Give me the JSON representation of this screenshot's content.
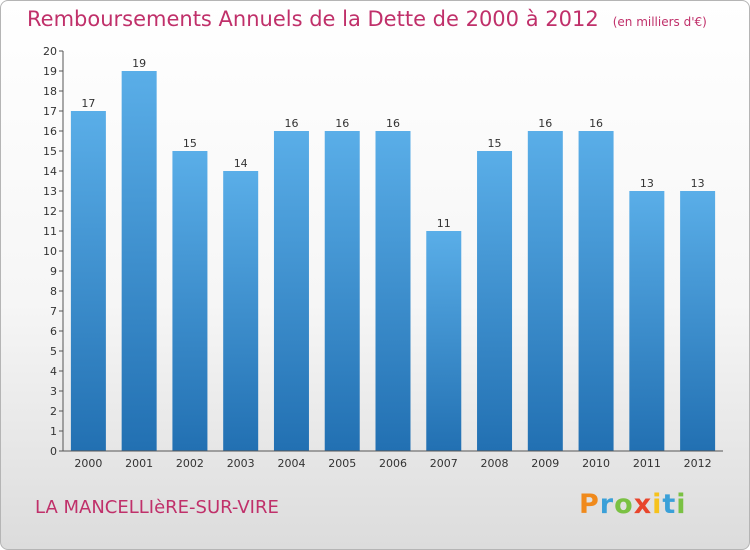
{
  "title": "Remboursements Annuels de la Dette de 2000 à 2012",
  "unit": "(en milliers d'€)",
  "place": "LA MANCELLIèRE-SUR-VIRE",
  "brand": {
    "letters": [
      "P",
      "r",
      "o",
      "x",
      "i",
      "t",
      "i"
    ],
    "colors": [
      "#f08a1c",
      "#3aa0d8",
      "#7ac143",
      "#e8452c",
      "#f6c21c",
      "#3aa0d8",
      "#7ac143"
    ]
  },
  "colors": {
    "bar_top": "#5aaee8",
    "bar_bottom": "#2270b2",
    "title": "#c0306a"
  },
  "chart_data": {
    "type": "bar",
    "categories": [
      "2000",
      "2001",
      "2002",
      "2003",
      "2004",
      "2005",
      "2006",
      "2007",
      "2008",
      "2009",
      "2010",
      "2011",
      "2012"
    ],
    "values": [
      17,
      19,
      15,
      14,
      16,
      16,
      16,
      11,
      15,
      16,
      16,
      13,
      13
    ],
    "ylim": [
      0,
      20
    ],
    "yticks": [
      0,
      1,
      2,
      3,
      4,
      5,
      6,
      7,
      8,
      9,
      10,
      11,
      12,
      13,
      14,
      15,
      16,
      17,
      18,
      19,
      20
    ],
    "grid": false,
    "title": "Remboursements Annuels de la Dette de 2000 à 2012",
    "xlabel": "",
    "ylabel": ""
  }
}
